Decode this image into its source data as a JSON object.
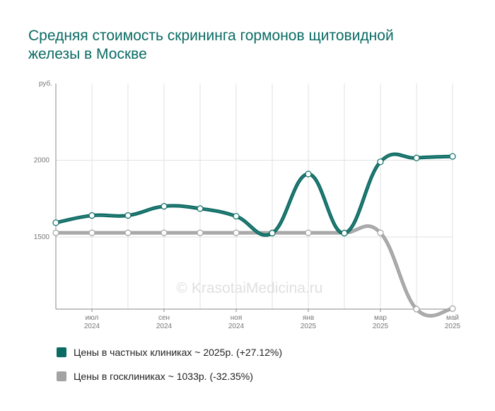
{
  "title": "Средняя стоимость скрининга гормонов щитовидной железы в Москве",
  "watermark": "© KrasotaiMedicina.ru",
  "colors": {
    "private": "#0b6b63",
    "public": "#a3a3a3",
    "grid": "#e2e2e2",
    "axis": "#888888"
  },
  "chart_data": {
    "type": "line",
    "x": [
      "2024-06",
      "2024-07",
      "2024-08",
      "2024-09",
      "2024-10",
      "2024-11",
      "2024-12",
      "2025-01",
      "2025-02",
      "2025-03",
      "2025-04",
      "2025-05"
    ],
    "xticks": [
      {
        "month": "2024-07",
        "label1": "июл",
        "label2": "2024"
      },
      {
        "month": "2024-09",
        "label1": "сен",
        "label2": "2024"
      },
      {
        "month": "2024-11",
        "label1": "ноя",
        "label2": "2024"
      },
      {
        "month": "2025-01",
        "label1": "янв",
        "label2": "2025"
      },
      {
        "month": "2025-03",
        "label1": "мар",
        "label2": "2025"
      },
      {
        "month": "2025-05",
        "label1": "май",
        "label2": "2025"
      }
    ],
    "yunit": "руб.",
    "yticks": [
      1500,
      2000
    ],
    "ylim": [
      1030,
      2500
    ],
    "grid": true,
    "series": [
      {
        "name": "Цены в частных клиниках",
        "legend": "Цены в частных клиниках ~ 2025р. (+27.12%)",
        "color": "#0b6b63",
        "values": [
          1593,
          1640,
          1640,
          1700,
          1685,
          1635,
          1525,
          1910,
          1525,
          1990,
          2015,
          2025
        ]
      },
      {
        "name": "Цены в госклиниках",
        "legend": "Цены в госклиниках ~ 1033р. (-32.35%)",
        "color": "#a3a3a3",
        "values": [
          1527,
          1527,
          1527,
          1527,
          1527,
          1527,
          1527,
          1527,
          1527,
          1527,
          1030,
          1033
        ]
      }
    ]
  }
}
